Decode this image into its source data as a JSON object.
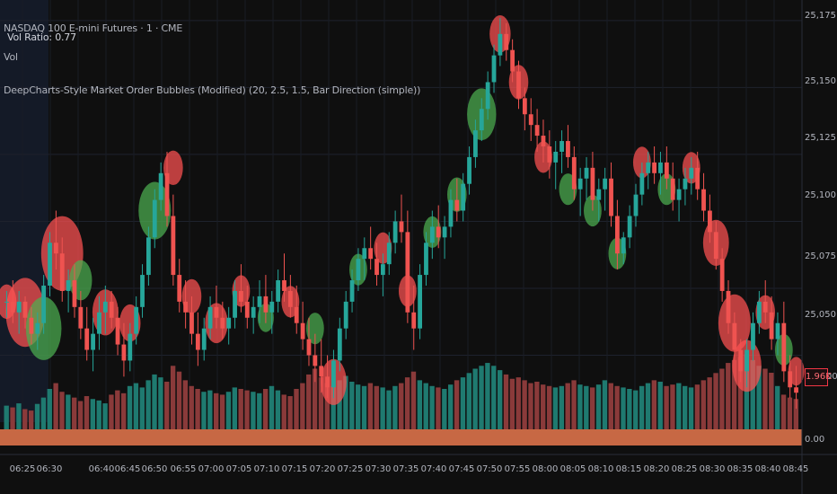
{
  "header": {
    "symbol_line": "NASDAQ 100 E-mini Futures · 1 · CME",
    "vol_ratio_label": "Vol Ratio: 0.77",
    "vol_label": "Vol",
    "indicator_label": "DeepCharts-Style Market Order Bubbles (Modified) (20, 2.5, 1.5, Bar Direction (simple))"
  },
  "price_axis": [
    "25,175.00",
    "25,150.00",
    "25,125.00",
    "25,100.00",
    "25,075.00",
    "25,050.00",
    "00",
    "0.00"
  ],
  "volume_badge": "1.96K",
  "time_axis": [
    "06:25",
    "06:30",
    "06:40",
    "06:45",
    "06:50",
    "06:55",
    "07:00",
    "07:05",
    "07:10",
    "07:15",
    "07:20",
    "07:25",
    "07:30",
    "07:35",
    "07:40",
    "07:45",
    "07:50",
    "07:55",
    "08:00",
    "08:05",
    "08:10",
    "08:15",
    "08:20",
    "08:25",
    "08:30",
    "08:35",
    "08:40",
    "08:45"
  ],
  "colors": {
    "background": "#0f0f0f",
    "bull": "#26a69a",
    "bear": "#ef5350",
    "bubble_bull": "#4caf50",
    "bubble_bear": "#ff5252",
    "base_band": "#e8784d"
  },
  "chart_data": {
    "type": "candlestick",
    "y_unit": "price",
    "ylim": [
      25025,
      25180
    ],
    "yticks": [
      25050,
      25075,
      25100,
      25125,
      25150,
      25175
    ],
    "grid": true,
    "candles": [
      [
        25070,
        25074,
        25064,
        25070
      ],
      [
        25070,
        25078,
        25062,
        25066
      ],
      [
        25066,
        25074,
        25058,
        25070
      ],
      [
        25070,
        25072,
        25060,
        25064
      ],
      [
        25064,
        25068,
        25054,
        25058
      ],
      [
        25058,
        25066,
        25052,
        25062
      ],
      [
        25062,
        25080,
        25058,
        25076
      ],
      [
        25076,
        25096,
        25072,
        25092
      ],
      [
        25092,
        25104,
        25082,
        25088
      ],
      [
        25088,
        25094,
        25070,
        25074
      ],
      [
        25074,
        25082,
        25066,
        25078
      ],
      [
        25078,
        25084,
        25064,
        25068
      ],
      [
        25068,
        25074,
        25056,
        25060
      ],
      [
        25060,
        25068,
        25048,
        25052
      ],
      [
        25052,
        25064,
        25044,
        25058
      ],
      [
        25058,
        25072,
        25052,
        25066
      ],
      [
        25066,
        25076,
        25058,
        25070
      ],
      [
        25070,
        25074,
        25060,
        25064
      ],
      [
        25064,
        25068,
        25050,
        25054
      ],
      [
        25054,
        25062,
        25042,
        25048
      ],
      [
        25048,
        25062,
        25044,
        25058
      ],
      [
        25058,
        25072,
        25054,
        25068
      ],
      [
        25068,
        25084,
        25064,
        25080
      ],
      [
        25080,
        25098,
        25076,
        25094
      ],
      [
        25094,
        25112,
        25090,
        25108
      ],
      [
        25108,
        25122,
        25104,
        25118
      ],
      [
        25118,
        25126,
        25098,
        25102
      ],
      [
        25102,
        25110,
        25076,
        25080
      ],
      [
        25080,
        25086,
        25066,
        25070
      ],
      [
        25070,
        25078,
        25060,
        25066
      ],
      [
        25066,
        25072,
        25054,
        25058
      ],
      [
        25058,
        25066,
        25046,
        25052
      ],
      [
        25052,
        25064,
        25048,
        25060
      ],
      [
        25060,
        25072,
        25056,
        25068
      ],
      [
        25068,
        25076,
        25060,
        25064
      ],
      [
        25064,
        25070,
        25056,
        25060
      ],
      [
        25060,
        25068,
        25054,
        25064
      ],
      [
        25064,
        25078,
        25060,
        25074
      ],
      [
        25074,
        25084,
        25066,
        25070
      ],
      [
        25070,
        25076,
        25060,
        25064
      ],
      [
        25064,
        25072,
        25058,
        25068
      ],
      [
        25068,
        25078,
        25062,
        25072
      ],
      [
        25072,
        25080,
        25062,
        25066
      ],
      [
        25066,
        25074,
        25058,
        25070
      ],
      [
        25070,
        25082,
        25066,
        25078
      ],
      [
        25078,
        25088,
        25070,
        25074
      ],
      [
        25074,
        25080,
        25064,
        25068
      ],
      [
        25068,
        25076,
        25058,
        25062
      ],
      [
        25062,
        25070,
        25052,
        25056
      ],
      [
        25056,
        25064,
        25046,
        25050
      ],
      [
        25050,
        25058,
        25040,
        25046
      ],
      [
        25046,
        25056,
        25036,
        25042
      ],
      [
        25042,
        25050,
        25034,
        25038
      ],
      [
        25038,
        25052,
        25034,
        25048
      ],
      [
        25048,
        25064,
        25044,
        25060
      ],
      [
        25060,
        25074,
        25056,
        25070
      ],
      [
        25070,
        25082,
        25066,
        25078
      ],
      [
        25078,
        25090,
        25074,
        25086
      ],
      [
        25086,
        25094,
        25078,
        25090
      ],
      [
        25090,
        25098,
        25082,
        25086
      ],
      [
        25086,
        25092,
        25076,
        25080
      ],
      [
        25080,
        25088,
        25072,
        25084
      ],
      [
        25084,
        25096,
        25080,
        25092
      ],
      [
        25092,
        25104,
        25088,
        25100
      ],
      [
        25100,
        25110,
        25092,
        25096
      ],
      [
        25096,
        25104,
        25062,
        25066
      ],
      [
        25066,
        25076,
        25052,
        25060
      ],
      [
        25060,
        25084,
        25056,
        25080
      ],
      [
        25080,
        25096,
        25076,
        25092
      ],
      [
        25092,
        25104,
        25086,
        25098
      ],
      [
        25098,
        25106,
        25090,
        25094
      ],
      [
        25094,
        25102,
        25086,
        25098
      ],
      [
        25098,
        25112,
        25094,
        25108
      ],
      [
        25108,
        25116,
        25100,
        25104
      ],
      [
        25104,
        25118,
        25100,
        25114
      ],
      [
        25114,
        25128,
        25110,
        25124
      ],
      [
        25124,
        25138,
        25120,
        25134
      ],
      [
        25134,
        25146,
        25130,
        25142
      ],
      [
        25142,
        25156,
        25138,
        25152
      ],
      [
        25152,
        25166,
        25148,
        25162
      ],
      [
        25162,
        25176,
        25158,
        25170
      ],
      [
        25170,
        25174,
        25160,
        25164
      ],
      [
        25164,
        25168,
        25152,
        25156
      ],
      [
        25156,
        25160,
        25142,
        25146
      ],
      [
        25146,
        25150,
        25134,
        25140
      ],
      [
        25140,
        25146,
        25130,
        25136
      ],
      [
        25136,
        25142,
        25126,
        25132
      ],
      [
        25132,
        25138,
        25122,
        25128
      ],
      [
        25128,
        25134,
        25116,
        25122
      ],
      [
        25122,
        25130,
        25112,
        25126
      ],
      [
        25126,
        25134,
        25118,
        25130
      ],
      [
        25130,
        25136,
        25120,
        25124
      ],
      [
        25124,
        25128,
        25108,
        25112
      ],
      [
        25112,
        25120,
        25102,
        25116
      ],
      [
        25116,
        25124,
        25108,
        25120
      ],
      [
        25120,
        25126,
        25104,
        25108
      ],
      [
        25108,
        25116,
        25100,
        25112
      ],
      [
        25112,
        25120,
        25104,
        25116
      ],
      [
        25116,
        25122,
        25098,
        25102
      ],
      [
        25102,
        25108,
        25082,
        25088
      ],
      [
        25088,
        25096,
        25084,
        25094
      ],
      [
        25094,
        25106,
        25090,
        25102
      ],
      [
        25102,
        25114,
        25098,
        25110
      ],
      [
        25110,
        25122,
        25106,
        25118
      ],
      [
        25118,
        25126,
        25112,
        25122
      ],
      [
        25122,
        25128,
        25114,
        25118
      ],
      [
        25118,
        25126,
        25110,
        25122
      ],
      [
        25122,
        25128,
        25112,
        25116
      ],
      [
        25116,
        25122,
        25104,
        25108
      ],
      [
        25108,
        25116,
        25100,
        25112
      ],
      [
        25112,
        25120,
        25106,
        25116
      ],
      [
        25116,
        25124,
        25110,
        25120
      ],
      [
        25120,
        25126,
        25108,
        25112
      ],
      [
        25112,
        25118,
        25100,
        25104
      ],
      [
        25104,
        25110,
        25092,
        25096
      ],
      [
        25096,
        25100,
        25082,
        25086
      ],
      [
        25086,
        25090,
        25070,
        25074
      ],
      [
        25074,
        25078,
        25058,
        25062
      ],
      [
        25062,
        25066,
        25048,
        25052
      ],
      [
        25052,
        25056,
        25040,
        25044
      ],
      [
        25044,
        25056,
        25038,
        25052
      ],
      [
        25052,
        25066,
        25048,
        25062
      ],
      [
        25062,
        25074,
        25058,
        25070
      ],
      [
        25070,
        25078,
        25062,
        25066
      ],
      [
        25066,
        25072,
        25052,
        25056
      ],
      [
        25056,
        25066,
        25050,
        25062
      ],
      [
        25062,
        25070,
        25040,
        25044
      ],
      [
        25044,
        25050,
        25034,
        25038
      ],
      [
        25038,
        25046,
        25030,
        25036
      ]
    ],
    "volumes": [
      820,
      760,
      900,
      700,
      650,
      880,
      1100,
      1400,
      1600,
      1300,
      1200,
      1100,
      980,
      1150,
      1050,
      1000,
      900,
      1200,
      1350,
      1250,
      1500,
      1600,
      1450,
      1700,
      1900,
      1800,
      1650,
      2200,
      2000,
      1700,
      1500,
      1400,
      1300,
      1350,
      1250,
      1200,
      1300,
      1450,
      1400,
      1350,
      1300,
      1250,
      1400,
      1500,
      1350,
      1200,
      1150,
      1400,
      1600,
      1900,
      2100,
      1800,
      1600,
      1500,
      1700,
      1850,
      1650,
      1550,
      1500,
      1600,
      1500,
      1450,
      1350,
      1500,
      1600,
      1800,
      2000,
      1700,
      1600,
      1500,
      1450,
      1400,
      1550,
      1700,
      1800,
      1950,
      2100,
      2200,
      2300,
      2200,
      2050,
      1900,
      1750,
      1800,
      1700,
      1600,
      1650,
      1550,
      1500,
      1450,
      1500,
      1600,
      1700,
      1550,
      1500,
      1450,
      1550,
      1700,
      1600,
      1500,
      1450,
      1400,
      1350,
      1500,
      1600,
      1700,
      1650,
      1500,
      1550,
      1600,
      1500,
      1450,
      1550,
      1700,
      1800,
      1950,
      2100,
      2300,
      2400,
      2500,
      2600,
      2400,
      2200,
      2100,
      1960,
      1500,
      1200,
      1100,
      1050
    ],
    "bubbles": [
      {
        "i": 0,
        "p": 25070,
        "s": 1.2,
        "d": "bear"
      },
      {
        "i": 3,
        "p": 25066,
        "s": 2.4,
        "d": "bear"
      },
      {
        "i": 6,
        "p": 25060,
        "s": 2.2,
        "d": "bull"
      },
      {
        "i": 9,
        "p": 25088,
        "s": 2.6,
        "d": "bear"
      },
      {
        "i": 12,
        "p": 25078,
        "s": 1.4,
        "d": "bull"
      },
      {
        "i": 16,
        "p": 25066,
        "s": 1.6,
        "d": "bear"
      },
      {
        "i": 20,
        "p": 25062,
        "s": 1.3,
        "d": "bear"
      },
      {
        "i": 24,
        "p": 25104,
        "s": 2.0,
        "d": "bull"
      },
      {
        "i": 27,
        "p": 25120,
        "s": 1.2,
        "d": "bear"
      },
      {
        "i": 30,
        "p": 25072,
        "s": 1.2,
        "d": "bear"
      },
      {
        "i": 34,
        "p": 25062,
        "s": 1.4,
        "d": "bear"
      },
      {
        "i": 38,
        "p": 25074,
        "s": 1.1,
        "d": "bear"
      },
      {
        "i": 42,
        "p": 25064,
        "s": 1.0,
        "d": "bull"
      },
      {
        "i": 46,
        "p": 25070,
        "s": 1.1,
        "d": "bear"
      },
      {
        "i": 50,
        "p": 25060,
        "s": 1.1,
        "d": "bull"
      },
      {
        "i": 53,
        "p": 25040,
        "s": 1.6,
        "d": "bear"
      },
      {
        "i": 57,
        "p": 25082,
        "s": 1.1,
        "d": "bull"
      },
      {
        "i": 61,
        "p": 25090,
        "s": 1.1,
        "d": "bear"
      },
      {
        "i": 65,
        "p": 25074,
        "s": 1.1,
        "d": "bear"
      },
      {
        "i": 69,
        "p": 25096,
        "s": 1.1,
        "d": "bull"
      },
      {
        "i": 73,
        "p": 25110,
        "s": 1.2,
        "d": "bull"
      },
      {
        "i": 77,
        "p": 25140,
        "s": 1.8,
        "d": "bull"
      },
      {
        "i": 80,
        "p": 25170,
        "s": 1.3,
        "d": "bear"
      },
      {
        "i": 83,
        "p": 25152,
        "s": 1.2,
        "d": "bear"
      },
      {
        "i": 87,
        "p": 25124,
        "s": 1.1,
        "d": "bear"
      },
      {
        "i": 91,
        "p": 25112,
        "s": 1.1,
        "d": "bull"
      },
      {
        "i": 95,
        "p": 25104,
        "s": 1.1,
        "d": "bull"
      },
      {
        "i": 99,
        "p": 25088,
        "s": 1.1,
        "d": "bull"
      },
      {
        "i": 103,
        "p": 25122,
        "s": 1.1,
        "d": "bear"
      },
      {
        "i": 107,
        "p": 25112,
        "s": 1.1,
        "d": "bull"
      },
      {
        "i": 111,
        "p": 25120,
        "s": 1.1,
        "d": "bear"
      },
      {
        "i": 115,
        "p": 25092,
        "s": 1.6,
        "d": "bear"
      },
      {
        "i": 118,
        "p": 25062,
        "s": 2.0,
        "d": "bear"
      },
      {
        "i": 120,
        "p": 25046,
        "s": 1.8,
        "d": "bear"
      },
      {
        "i": 123,
        "p": 25066,
        "s": 1.2,
        "d": "bear"
      },
      {
        "i": 126,
        "p": 25052,
        "s": 1.1,
        "d": "bull"
      },
      {
        "i": 128,
        "p": 25044,
        "s": 1.0,
        "d": "bear"
      }
    ]
  }
}
